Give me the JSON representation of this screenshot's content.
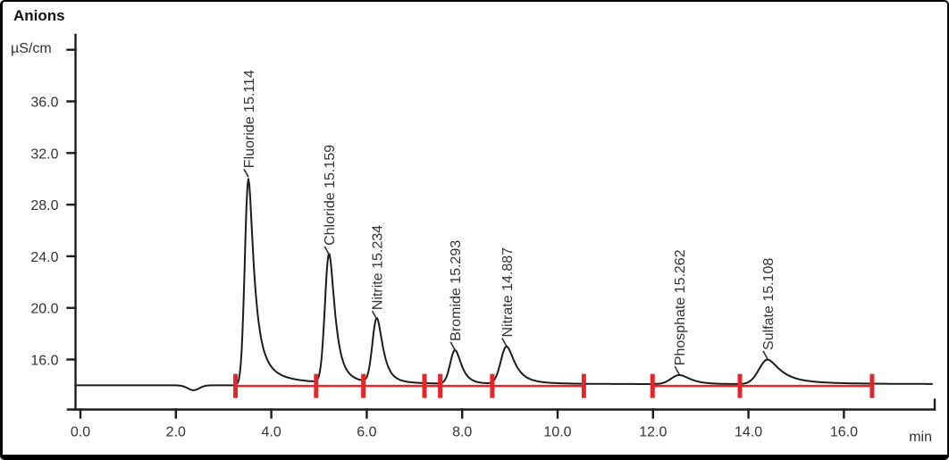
{
  "chart_data": {
    "type": "line",
    "title": "Anions",
    "x_axis": {
      "unit": "min",
      "range_min": [
        0.0,
        17.9
      ],
      "ticks": [
        {
          "t": 0,
          "label": "0.0"
        },
        {
          "t": 2,
          "label": "2.0"
        },
        {
          "t": 4,
          "label": "4.0"
        },
        {
          "t": 6,
          "label": "6.0"
        },
        {
          "t": 8,
          "label": "8.0"
        },
        {
          "t": 10,
          "label": "10.0"
        },
        {
          "t": 12,
          "label": "12.0"
        },
        {
          "t": 14,
          "label": "14.0"
        },
        {
          "t": 16,
          "label": "16.0"
        }
      ]
    },
    "y_axis": {
      "unit": "µS/cm",
      "ticks": [
        {
          "v": 36,
          "label": "36.0"
        },
        {
          "v": 32,
          "label": "32.0"
        },
        {
          "v": 28,
          "label": "28.0"
        },
        {
          "v": 24,
          "label": "24.0"
        },
        {
          "v": 20,
          "label": "20.0"
        },
        {
          "v": 16,
          "label": "16.0"
        }
      ],
      "unlabeled_top_tick_v": 40
    },
    "grid": false,
    "baseline_uS": 14.0,
    "injection_dip": {
      "time_min": 2.37,
      "depth_uS": 0.38,
      "sigma_min": 0.12
    },
    "peaks": [
      {
        "name": "Fluoride",
        "label": "Fluoride 15.114",
        "value": 15.114,
        "retention_min": 3.52,
        "apex_uS": 30.0,
        "sigma_min": 0.075,
        "tail": 4.0
      },
      {
        "name": "Chloride",
        "label": "Chloride 15.159",
        "value": 15.159,
        "retention_min": 5.21,
        "apex_uS": 24.0,
        "sigma_min": 0.085,
        "tail": 2.8
      },
      {
        "name": "Nitrite",
        "label": "Nitrite 15.234",
        "value": 15.234,
        "retention_min": 6.21,
        "apex_uS": 19.0,
        "sigma_min": 0.09,
        "tail": 2.5
      },
      {
        "name": "Bromide",
        "label": "Bromide 15.293",
        "value": 15.293,
        "retention_min": 7.85,
        "apex_uS": 16.6,
        "sigma_min": 0.1,
        "tail": 2.0
      },
      {
        "name": "Nitrate",
        "label": "Nitrate 14.887",
        "value": 14.887,
        "retention_min": 8.93,
        "apex_uS": 16.9,
        "sigma_min": 0.12,
        "tail": 2.1
      },
      {
        "name": "Phosphate",
        "label": "Phosphate 15.262",
        "value": 15.262,
        "retention_min": 12.55,
        "apex_uS": 14.7,
        "sigma_min": 0.17,
        "tail": 1.2
      },
      {
        "name": "Sulfate",
        "label": "Sulfate 15.108",
        "value": 15.108,
        "retention_min": 14.4,
        "apex_uS": 15.9,
        "sigma_min": 0.18,
        "tail": 1.6
      }
    ],
    "integration": {
      "level_uS": 13.95,
      "segments_min": [
        [
          3.25,
          10.55
        ],
        [
          11.99,
          16.59
        ]
      ],
      "markers_min": [
        3.25,
        4.94,
        5.93,
        7.21,
        7.54,
        8.63,
        10.55,
        11.99,
        13.82,
        16.59
      ]
    },
    "colors": {
      "signal": "#1c1c1c",
      "axis": "#1c1c1c",
      "text": "#2f3338",
      "integration_red": "#e42529"
    }
  }
}
